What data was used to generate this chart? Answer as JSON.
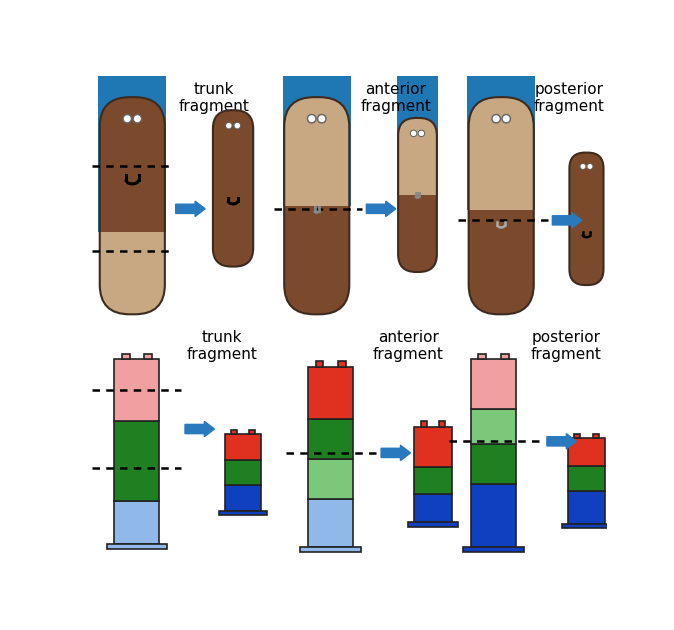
{
  "colors": {
    "worm_light": "#C8A882",
    "worm_dark": "#7B4A2D",
    "worm_outline": "#3d2b1f",
    "arrow_blue": "#2979BF",
    "red": "#E03020",
    "green": "#1E8020",
    "light_green": "#7BC87A",
    "blue": "#1040C0",
    "light_blue": "#90B8E8",
    "pink": "#F0A0A0",
    "white": "#FFFFFF",
    "black": "#000000",
    "gray": "#888888"
  },
  "labels": {
    "trunk": "trunk\nfragment",
    "anterior": "anterior\nfragment",
    "posterior": "posterior\nfragment"
  },
  "fontsize": 11
}
